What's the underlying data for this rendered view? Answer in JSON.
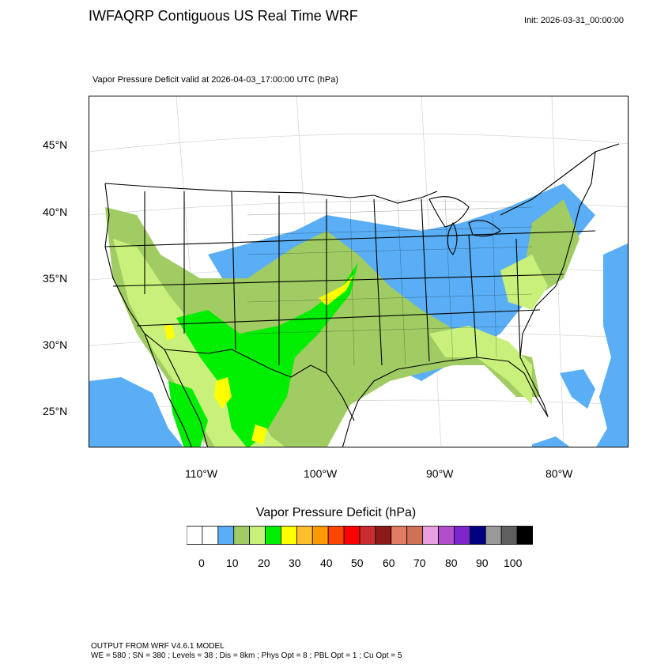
{
  "header": {
    "title": "IWFAQRP Contiguous US Real Time WRF",
    "init": "Init: 2026-03-31_00:00:00",
    "valid": "Vapor Pressure Deficit valid at 2026-04-03_17:00:00 UTC   (hPa)"
  },
  "map": {
    "lat_labels": [
      "45°N",
      "40°N",
      "35°N",
      "30°N",
      "25°N"
    ],
    "lon_labels": [
      "110°W",
      "100°W",
      "90°W",
      "80°W"
    ],
    "colors": {
      "ocean_blue": "#5aaef5",
      "light_green": "#c8f07a",
      "olive_green": "#a0cc63",
      "bright_green": "#00ee00",
      "yellow": "#ffff00",
      "border": "#000000",
      "grid": "#cfcfcf"
    }
  },
  "colorbar": {
    "title": "Vapor Pressure Deficit  (hPa)",
    "labels": [
      "0",
      "10",
      "20",
      "30",
      "40",
      "50",
      "60",
      "70",
      "80",
      "90",
      "100"
    ],
    "colors": [
      "#ffffff",
      "#ffffff",
      "#5aaef5",
      "#a0cc63",
      "#c8f07a",
      "#00ee00",
      "#ffff00",
      "#ffbe2e",
      "#ff9900",
      "#ff4400",
      "#ff0000",
      "#c72d2d",
      "#8b1a1a",
      "#e07a63",
      "#d07055",
      "#e8a0e0",
      "#b04ecc",
      "#7d26cd",
      "#000080",
      "#9a9a9a",
      "#5f5f5f",
      "#000000"
    ]
  },
  "footer": {
    "line1": "OUTPUT FROM WRF V4.6.1 MODEL",
    "line2": "WE = 580 ; SN = 380 ; Levels = 38 ; Dis = 8km ; Phys Opt = 8 ; PBL Opt = 1 ; Cu Opt = 5"
  }
}
